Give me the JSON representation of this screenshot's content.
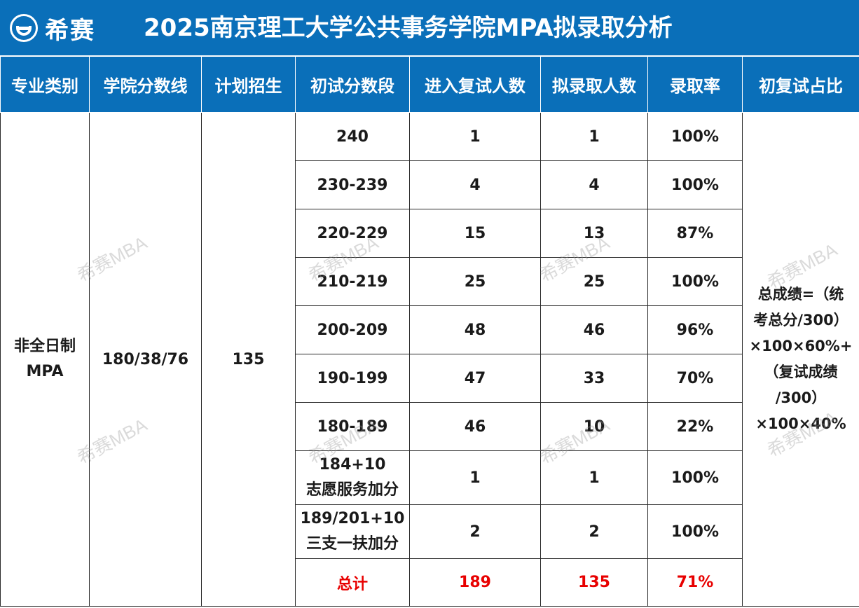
{
  "header": {
    "logo_text": "希赛",
    "title": "2025南京理工大学公共事务学院MPA拟录取分析"
  },
  "columns": [
    "专业类别",
    "学院分数线",
    "计划招生",
    "初试分数段",
    "进入复试人数",
    "拟录取人数",
    "录取率",
    "初复试占比"
  ],
  "program": {
    "line1": "非全日制",
    "line2": "MPA"
  },
  "cutoff": "180/38/76",
  "plan": "135",
  "rows": [
    {
      "range": "240",
      "retest": "1",
      "admit": "1",
      "rate": "100%"
    },
    {
      "range": "230-239",
      "retest": "4",
      "admit": "4",
      "rate": "100%"
    },
    {
      "range": "220-229",
      "retest": "15",
      "admit": "13",
      "rate": "87%"
    },
    {
      "range": "210-219",
      "retest": "25",
      "admit": "25",
      "rate": "100%"
    },
    {
      "range": "200-209",
      "retest": "48",
      "admit": "46",
      "rate": "96%"
    },
    {
      "range": "190-199",
      "retest": "47",
      "admit": "33",
      "rate": "70%"
    },
    {
      "range": "180-189",
      "retest": "46",
      "admit": "10",
      "rate": "22%"
    },
    {
      "range": "184+10",
      "range2": "志愿服务加分",
      "retest": "1",
      "admit": "1",
      "rate": "100%"
    },
    {
      "range": "189/201+10",
      "range2": "三支一扶加分",
      "retest": "2",
      "admit": "2",
      "rate": "100%"
    }
  ],
  "total": {
    "label": "总计",
    "retest": "189",
    "admit": "135",
    "rate": "71%"
  },
  "ratio_rule": [
    "总成绩=（统",
    "考总分/300）",
    "×100×60%+",
    "（复试成绩",
    "/300）",
    "×100×40%"
  ],
  "watermark": "希赛MBA",
  "colors": {
    "header_bg": "#0a6fb9",
    "total_text": "#e80000"
  }
}
